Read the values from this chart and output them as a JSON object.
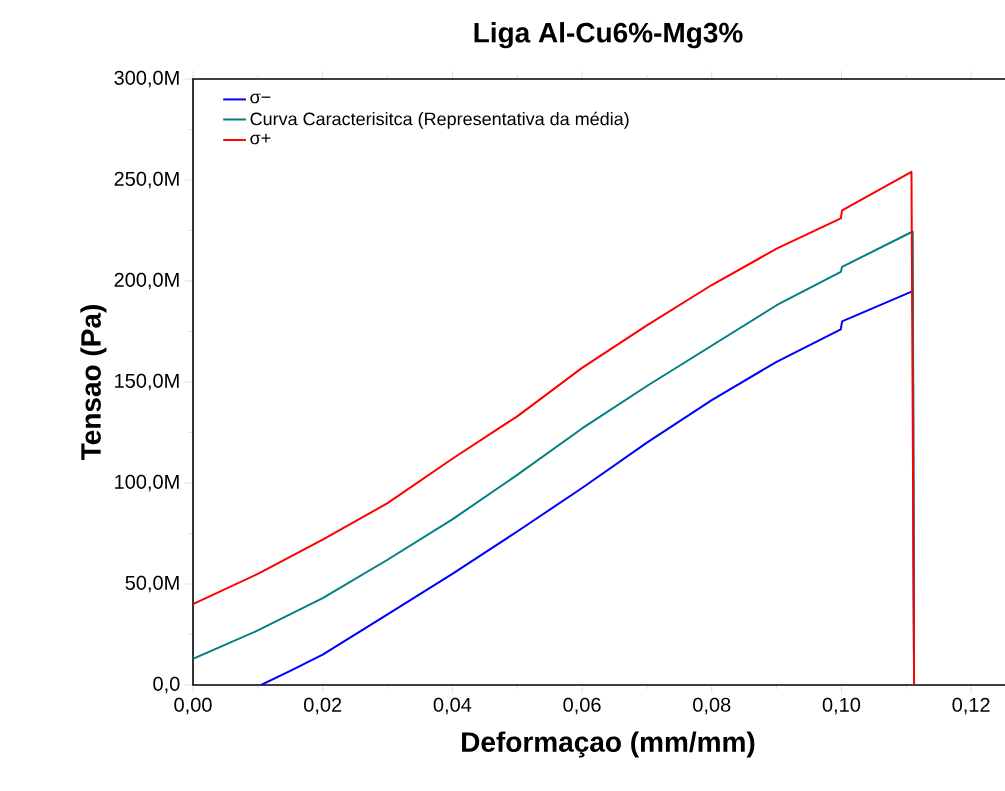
{
  "chart_data": {
    "type": "line",
    "title": "Liga Al-Cu6%-Mg3%",
    "xlabel": "Deformaçao (mm/mm)",
    "ylabel": "Tensao (Pa)",
    "xlim": [
      0,
      0.128
    ],
    "ylim": [
      0,
      300000000
    ],
    "xticks": [
      {
        "value": 0,
        "label": "0,00"
      },
      {
        "value": 0.02,
        "label": "0,02"
      },
      {
        "value": 0.04,
        "label": "0,04"
      },
      {
        "value": 0.06,
        "label": "0,06"
      },
      {
        "value": 0.08,
        "label": "0,08"
      },
      {
        "value": 0.1,
        "label": "0,10"
      },
      {
        "value": 0.12,
        "label": "0,12"
      }
    ],
    "yticks": [
      {
        "value": 0,
        "label": "0,0"
      },
      {
        "value": 50000000,
        "label": "50,0M"
      },
      {
        "value": 100000000,
        "label": "100,0M"
      },
      {
        "value": 150000000,
        "label": "150,0M"
      },
      {
        "value": 200000000,
        "label": "200,0M"
      },
      {
        "value": 250000000,
        "label": "250,0M"
      },
      {
        "value": 300000000,
        "label": "300,0M"
      }
    ],
    "legend": "top left",
    "grid": false,
    "marker": "none",
    "line_style": "solid",
    "series": [
      {
        "name": "σ−",
        "color": "#0000ff",
        "x": [
          0.0105,
          0.015,
          0.02,
          0.03,
          0.04,
          0.05,
          0.06,
          0.07,
          0.08,
          0.09,
          0.0999,
          0.1001,
          0.111,
          0.1112
        ],
        "values": [
          0,
          7000000,
          15000000,
          35000000,
          55000000,
          76000000,
          97500000,
          120000000,
          141000000,
          160000000,
          176000000,
          180000000,
          195000000,
          0
        ]
      },
      {
        "name": "Curva Caracterisitca (Representativa da média)",
        "color": "#008080",
        "x": [
          0,
          0.01,
          0.02,
          0.03,
          0.04,
          0.05,
          0.06,
          0.07,
          0.08,
          0.09,
          0.0999,
          0.1001,
          0.111,
          0.1112
        ],
        "values": [
          13000000,
          27000000,
          43000000,
          62000000,
          82000000,
          104000000,
          127000000,
          148000000,
          168000000,
          188000000,
          204500000,
          207000000,
          224500000,
          0
        ]
      },
      {
        "name": "σ+",
        "color": "#ff0000",
        "x": [
          0,
          0.01,
          0.02,
          0.03,
          0.04,
          0.05,
          0.06,
          0.07,
          0.08,
          0.09,
          0.0999,
          0.1001,
          0.1108,
          0.1112
        ],
        "values": [
          40000000,
          55000000,
          72000000,
          90000000,
          112000000,
          133000000,
          157000000,
          178000000,
          198000000,
          216000000,
          231000000,
          235000000,
          254000000,
          0
        ]
      }
    ]
  }
}
